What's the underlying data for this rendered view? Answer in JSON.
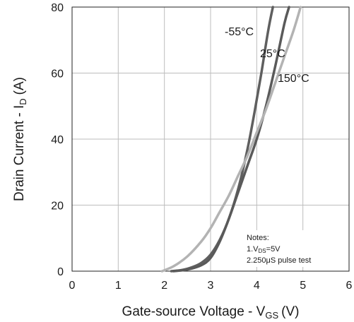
{
  "chart_data": {
    "type": "line",
    "xlabel": "Gate-source Voltage - V",
    "xlabel_sub": "GS",
    "xlabel_unit": "(V)",
    "ylabel": "Drain Current - I",
    "ylabel_sub": "D",
    "ylabel_unit": "(A)",
    "xlim": [
      0,
      6
    ],
    "ylim": [
      0,
      80
    ],
    "x_ticks": [
      "0",
      "1",
      "2",
      "3",
      "4",
      "5",
      "6"
    ],
    "y_ticks": [
      "0",
      "20",
      "40",
      "60",
      "80"
    ],
    "grid": true,
    "series": [
      {
        "name": "-55°C",
        "color": "#5f5f5f",
        "x": [
          2.15,
          2.4,
          2.6,
          2.8,
          3.0,
          3.2,
          3.4,
          3.6,
          3.8,
          3.95,
          4.1,
          4.25,
          4.35
        ],
        "y": [
          0.0,
          0.4,
          1.2,
          2.5,
          5.0,
          9.5,
          16.0,
          25.0,
          37.0,
          48.0,
          60.0,
          73.0,
          80.0
        ]
      },
      {
        "name": "25°C",
        "color": "#5a5a5a",
        "x": [
          2.2,
          2.5,
          2.8,
          3.0,
          3.2,
          3.4,
          3.6,
          3.8,
          4.0,
          4.2,
          4.4,
          4.6,
          4.7
        ],
        "y": [
          0.0,
          0.5,
          1.8,
          4.0,
          9.0,
          16.0,
          24.0,
          32.0,
          40.0,
          50.0,
          62.0,
          75.0,
          80.0
        ]
      },
      {
        "name": "150°C",
        "color": "#b3b3b3",
        "x": [
          1.95,
          2.2,
          2.5,
          2.8,
          3.0,
          3.2,
          3.4,
          3.6,
          3.8,
          4.0,
          4.2,
          4.4,
          4.6,
          4.8,
          4.95
        ],
        "y": [
          0.0,
          1.5,
          4.5,
          9.0,
          13.0,
          18.0,
          23.0,
          29.0,
          35.0,
          42.0,
          49.0,
          57.0,
          65.0,
          73.0,
          80.0
        ]
      }
    ],
    "notes": {
      "title": "Notes:",
      "line1_pre": "1.V",
      "line1_sub": "DS",
      "line1_post": "=5V",
      "line2": "2.250μS pulse test"
    }
  }
}
